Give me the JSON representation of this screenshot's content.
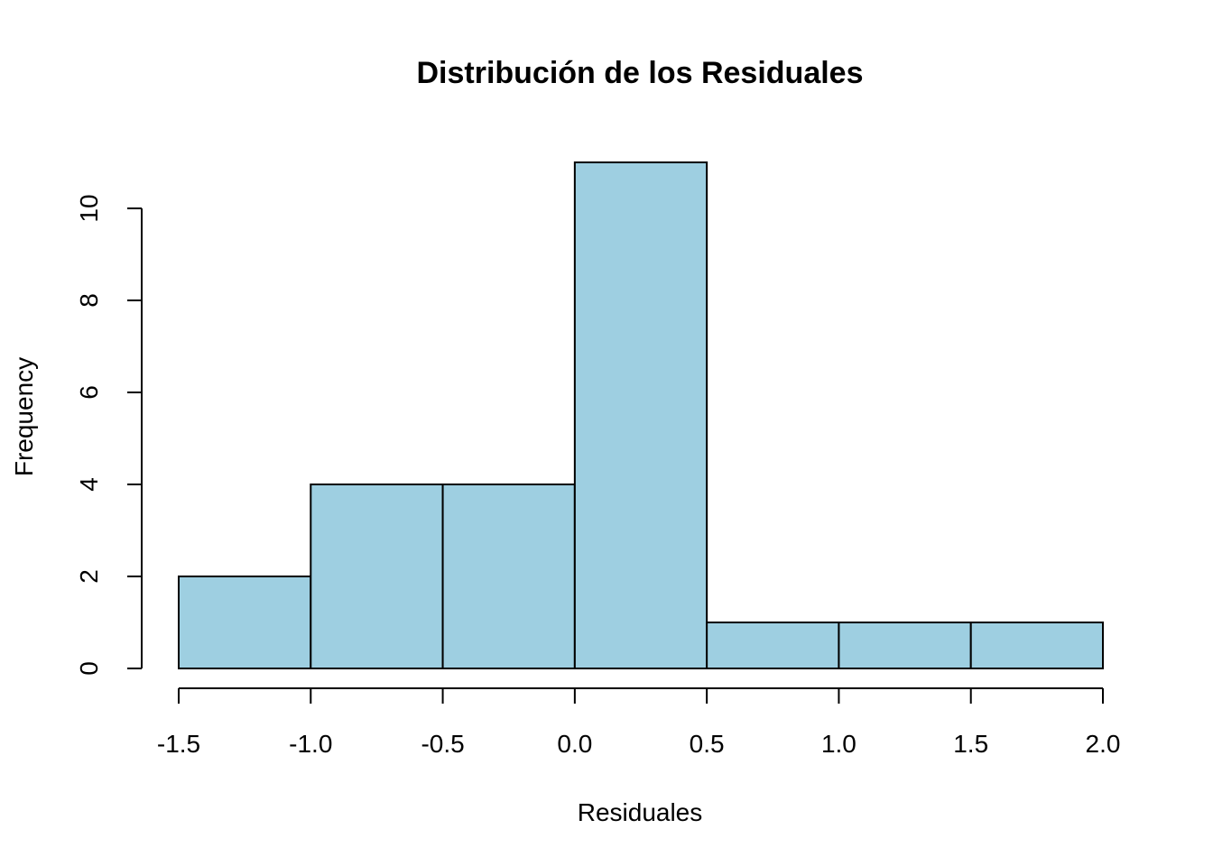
{
  "chart_data": {
    "type": "bar",
    "title": "Distribución de los Residuales",
    "xlabel": "Residuales",
    "ylabel": "Frequency",
    "bins": [
      {
        "start": -1.5,
        "end": -1.0,
        "value": 2
      },
      {
        "start": -1.0,
        "end": -0.5,
        "value": 4
      },
      {
        "start": -0.5,
        "end": 0.0,
        "value": 4
      },
      {
        "start": 0.0,
        "end": 0.5,
        "value": 11
      },
      {
        "start": 0.5,
        "end": 1.0,
        "value": 1
      },
      {
        "start": 1.0,
        "end": 1.5,
        "value": 1
      },
      {
        "start": 1.5,
        "end": 2.0,
        "value": 1
      }
    ],
    "xlim": [
      -1.5,
      2.0
    ],
    "ylim": [
      0,
      11
    ],
    "x_ticks": [
      -1.5,
      -1.0,
      -0.5,
      0.0,
      0.5,
      1.0,
      1.5,
      2.0
    ],
    "x_tick_labels": [
      "-1.5",
      "-1.0",
      "-0.5",
      "0.0",
      "0.5",
      "1.0",
      "1.5",
      "2.0"
    ],
    "y_ticks": [
      0,
      2,
      4,
      6,
      8,
      10
    ],
    "y_tick_labels": [
      "0",
      "2",
      "4",
      "6",
      "8",
      "10"
    ],
    "bar_color": "#9ecfe1",
    "edge_color": "#000000",
    "grid": false
  }
}
